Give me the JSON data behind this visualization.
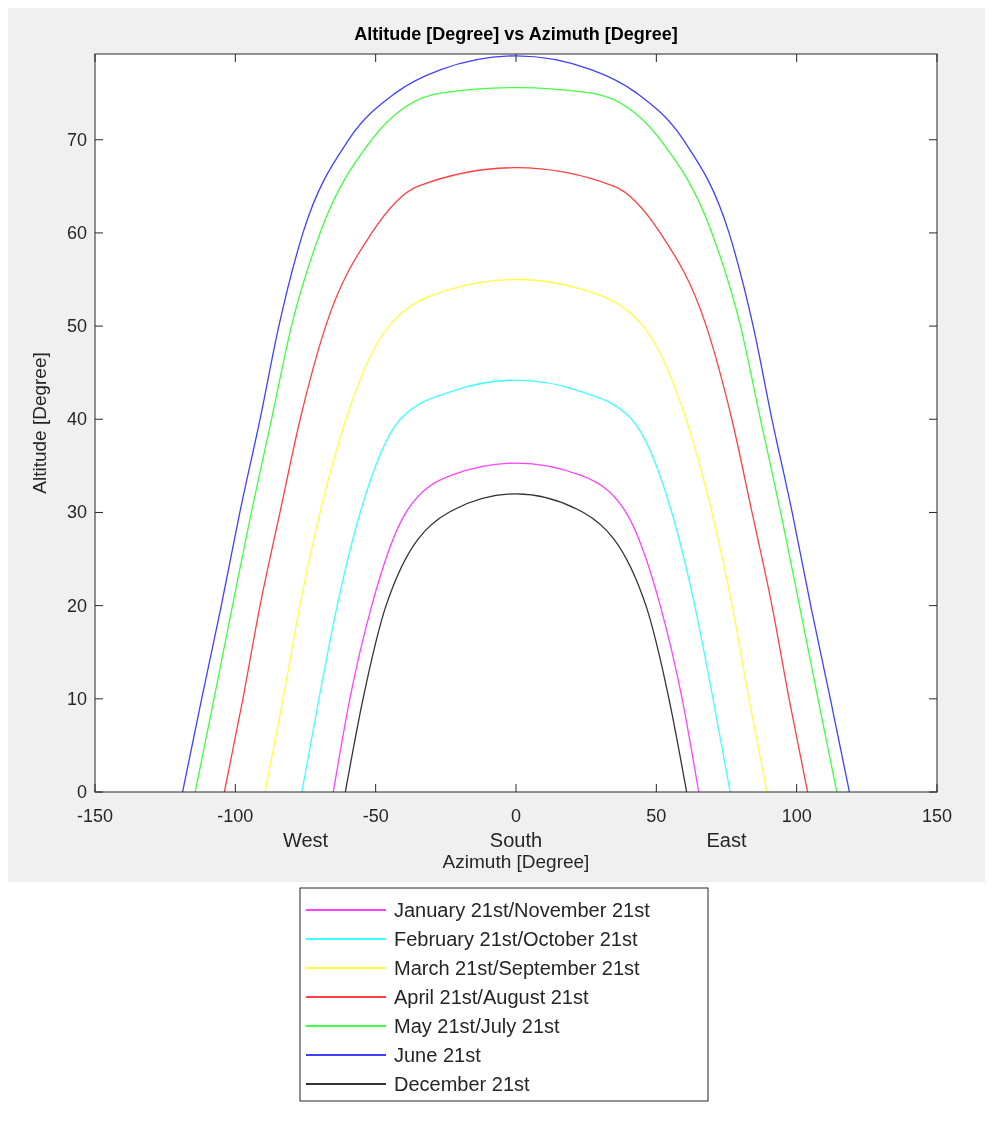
{
  "chart_data": {
    "type": "line",
    "title": "Altitude [Degree] vs Azimuth [Degree]",
    "xlabel": "Azimuth [Degree]",
    "ylabel": "Altitude [Degree]",
    "xlim": [
      -150,
      150
    ],
    "xticks": [
      -150,
      -100,
      -50,
      0,
      50,
      100,
      150
    ],
    "ylim": [
      0,
      79.2
    ],
    "yticks": [
      0,
      10,
      20,
      30,
      40,
      50,
      60,
      70
    ],
    "annotations": [
      "West",
      "South",
      "East"
    ],
    "grid": false,
    "legend": "bottom",
    "marker": "none",
    "line_style": "solid",
    "series": [
      {
        "name": "January 21st/November 21st",
        "color": "#ff40ff",
        "x": [
          -65.1,
          -59.2,
          -51.4,
          -39.2,
          -22.9,
          0,
          22.9,
          39.2,
          51.4,
          59.2,
          65.1
        ],
        "values": [
          0,
          10,
          20,
          30,
          34,
          35.3,
          34,
          30,
          20,
          10,
          0
        ]
      },
      {
        "name": "February 21st/October 21st",
        "color": "#40ffff",
        "x": [
          -76.3,
          -70.2,
          -63.7,
          -55.5,
          -41.2,
          -22.9,
          0,
          22.9,
          41.2,
          55.5,
          63.7,
          70.2,
          76.3
        ],
        "values": [
          0,
          10,
          20,
          30,
          40,
          43,
          44.2,
          43,
          40,
          30,
          20,
          10,
          0
        ]
      },
      {
        "name": "March 21st/September 21st",
        "color": "#ffff40",
        "x": [
          -89.4,
          -83,
          -77,
          -69.8,
          -60.6,
          -45.3,
          -22.9,
          0,
          22.9,
          45.3,
          60.6,
          69.8,
          77,
          83,
          89.4
        ],
        "values": [
          0,
          10,
          20,
          30,
          40,
          50,
          54,
          55,
          54,
          50,
          40,
          30,
          20,
          10,
          0
        ]
      },
      {
        "name": "April 21st/August 21st",
        "color": "#ff4040",
        "x": [
          -103.9,
          -97.3,
          -91.2,
          -84.1,
          -76.9,
          -67.8,
          -51.4,
          -35,
          0,
          35,
          51.4,
          67.8,
          76.9,
          84.1,
          91.2,
          97.3,
          103.9
        ],
        "values": [
          0,
          10,
          20,
          30,
          40,
          50,
          60,
          65,
          67,
          65,
          60,
          50,
          40,
          30,
          20,
          10,
          0
        ]
      },
      {
        "name": "May 21st/July 21st",
        "color": "#40ff40",
        "x": [
          -114.3,
          -107.6,
          -101,
          -94.3,
          -87.1,
          -80,
          -69.8,
          -51.4,
          -27,
          0,
          27,
          51.4,
          69.8,
          80,
          87.1,
          94.3,
          101,
          107.6,
          114.3
        ],
        "values": [
          0,
          10,
          20,
          30,
          40,
          50,
          60,
          70,
          75,
          75.6,
          75,
          70,
          60,
          50,
          40,
          30,
          20,
          10,
          0
        ]
      },
      {
        "name": "June 21st",
        "color": "#4040ff",
        "x": [
          -118.8,
          -112,
          -105,
          -98.4,
          -91.2,
          -84.5,
          -75.9,
          -59.6,
          -43,
          -27,
          0,
          27,
          43,
          59.6,
          75.9,
          84.5,
          91.2,
          98.4,
          105,
          112,
          118.8
        ],
        "values": [
          0,
          10,
          20,
          30,
          40,
          50,
          60,
          70,
          75,
          77.5,
          79,
          77.5,
          75,
          70,
          60,
          50,
          40,
          30,
          20,
          10,
          0
        ]
      },
      {
        "name": "December 21st",
        "color": "#333333",
        "x": [
          -60.8,
          -54.5,
          -46.3,
          -24,
          0,
          24,
          46.3,
          54.5,
          60.8
        ],
        "values": [
          0,
          10,
          20,
          30,
          32,
          30,
          20,
          10,
          0
        ]
      }
    ]
  }
}
